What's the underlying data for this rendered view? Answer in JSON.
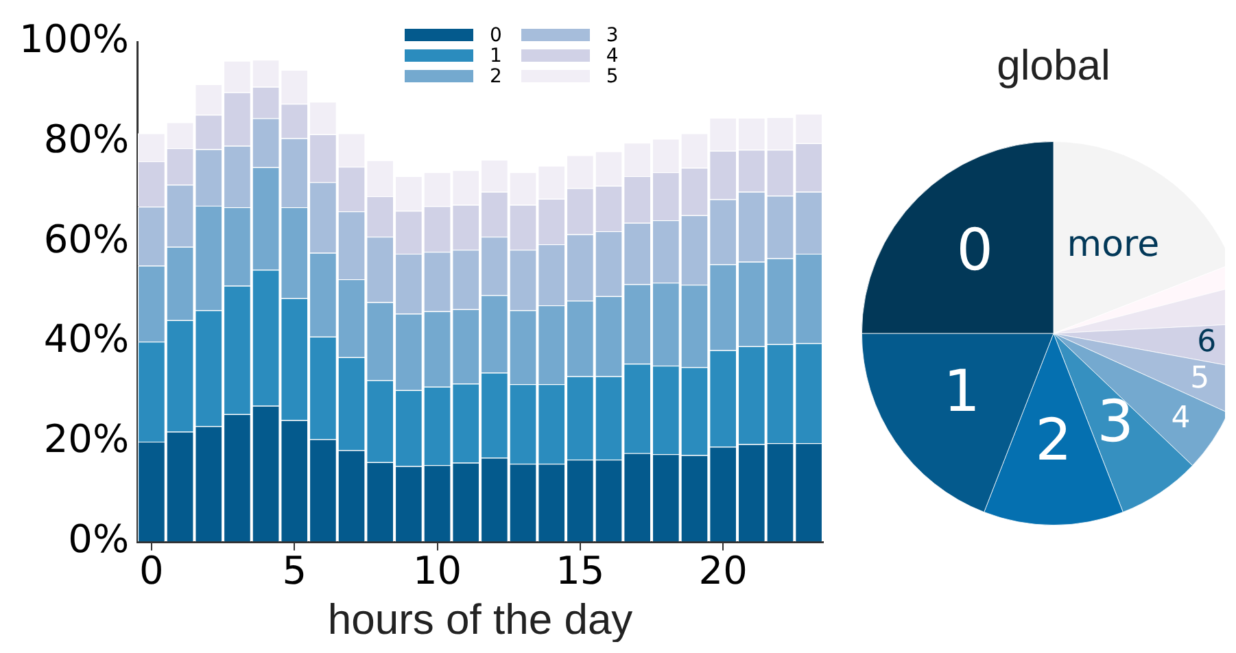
{
  "chart_data": [
    {
      "type": "bar",
      "stacked": true,
      "xlabel": "hours of the day",
      "legend": "top",
      "grid": false,
      "x": [
        0,
        1,
        2,
        3,
        4,
        5,
        6,
        7,
        8,
        9,
        10,
        11,
        12,
        13,
        14,
        15,
        16,
        17,
        18,
        19,
        20,
        21,
        22,
        23
      ],
      "xlim": [
        -0.5,
        23.5
      ],
      "xticks": [
        0,
        5,
        10,
        15,
        20
      ],
      "ylim": [
        0,
        100
      ],
      "yticks": [
        {
          "value": 0,
          "label": "0%"
        },
        {
          "value": 20,
          "label": "20%"
        },
        {
          "value": 40,
          "label": "40%"
        },
        {
          "value": 60,
          "label": "60%"
        },
        {
          "value": 80,
          "label": "80%"
        },
        {
          "value": 100,
          "label": "100%"
        }
      ],
      "series": [
        {
          "name": "0",
          "color": "#045a8d",
          "values": [
            20.1,
            22.1,
            23.2,
            25.6,
            27.3,
            24.4,
            20.6,
            18.4,
            16.0,
            15.2,
            15.4,
            15.9,
            16.9,
            15.7,
            15.7,
            16.5,
            16.5,
            17.8,
            17.6,
            17.4,
            19.1,
            19.6,
            19.8,
            19.8
          ]
        },
        {
          "name": "1",
          "color": "#2b8cbe",
          "values": [
            20.0,
            22.3,
            23.2,
            25.7,
            27.2,
            24.4,
            20.5,
            18.6,
            16.4,
            15.2,
            15.7,
            15.8,
            17.0,
            15.9,
            15.9,
            16.7,
            16.7,
            17.9,
            17.7,
            17.6,
            19.3,
            19.6,
            19.8,
            20.0
          ]
        },
        {
          "name": "2",
          "color": "#74a9cf",
          "values": [
            15.2,
            14.7,
            20.9,
            15.7,
            20.5,
            18.2,
            16.8,
            15.6,
            15.6,
            15.3,
            15.1,
            14.9,
            15.5,
            14.8,
            15.8,
            15.1,
            16.0,
            15.9,
            16.6,
            16.5,
            17.2,
            16.9,
            17.2,
            17.9
          ]
        },
        {
          "name": "3",
          "color": "#a6bddb",
          "values": [
            11.8,
            12.4,
            11.3,
            12.3,
            9.8,
            13.8,
            14.1,
            13.6,
            13.1,
            12.0,
            11.9,
            11.9,
            11.7,
            12.1,
            12.2,
            13.3,
            13.0,
            12.3,
            12.5,
            13.9,
            13.0,
            14.0,
            12.5,
            12.4
          ]
        },
        {
          "name": "4",
          "color": "#d0d1e6",
          "values": [
            9.1,
            7.3,
            6.9,
            10.7,
            6.3,
            6.9,
            9.6,
            8.9,
            8.1,
            8.6,
            9.1,
            9.0,
            9.0,
            9.0,
            9.1,
            9.2,
            9.1,
            9.3,
            9.6,
            9.5,
            9.7,
            8.4,
            9.2,
            9.7
          ]
        },
        {
          "name": "5",
          "color": "#f1eef6",
          "values": [
            5.6,
            5.2,
            6.1,
            6.3,
            5.4,
            6.8,
            6.5,
            6.7,
            7.2,
            6.9,
            6.8,
            6.9,
            6.4,
            6.5,
            6.6,
            6.6,
            6.9,
            6.7,
            6.7,
            6.9,
            6.6,
            6.4,
            6.5,
            5.9
          ]
        }
      ]
    },
    {
      "type": "pie",
      "title": "global",
      "categories": [
        "0",
        "1",
        "2",
        "3",
        "4",
        "5",
        "6",
        null,
        null,
        "more"
      ],
      "values": [
        25.0,
        19.1,
        11.8,
        7.0,
        5.3,
        3.9,
        3.7,
        3.2,
        1.9,
        19.1
      ],
      "colors": [
        "#023858",
        "#045a8d",
        "#0570b0",
        "#3690c0",
        "#74a9cf",
        "#a6bddb",
        "#d0d1e6",
        "#ece7f2",
        "#fff7fb",
        "#f4f4f4"
      ]
    }
  ]
}
